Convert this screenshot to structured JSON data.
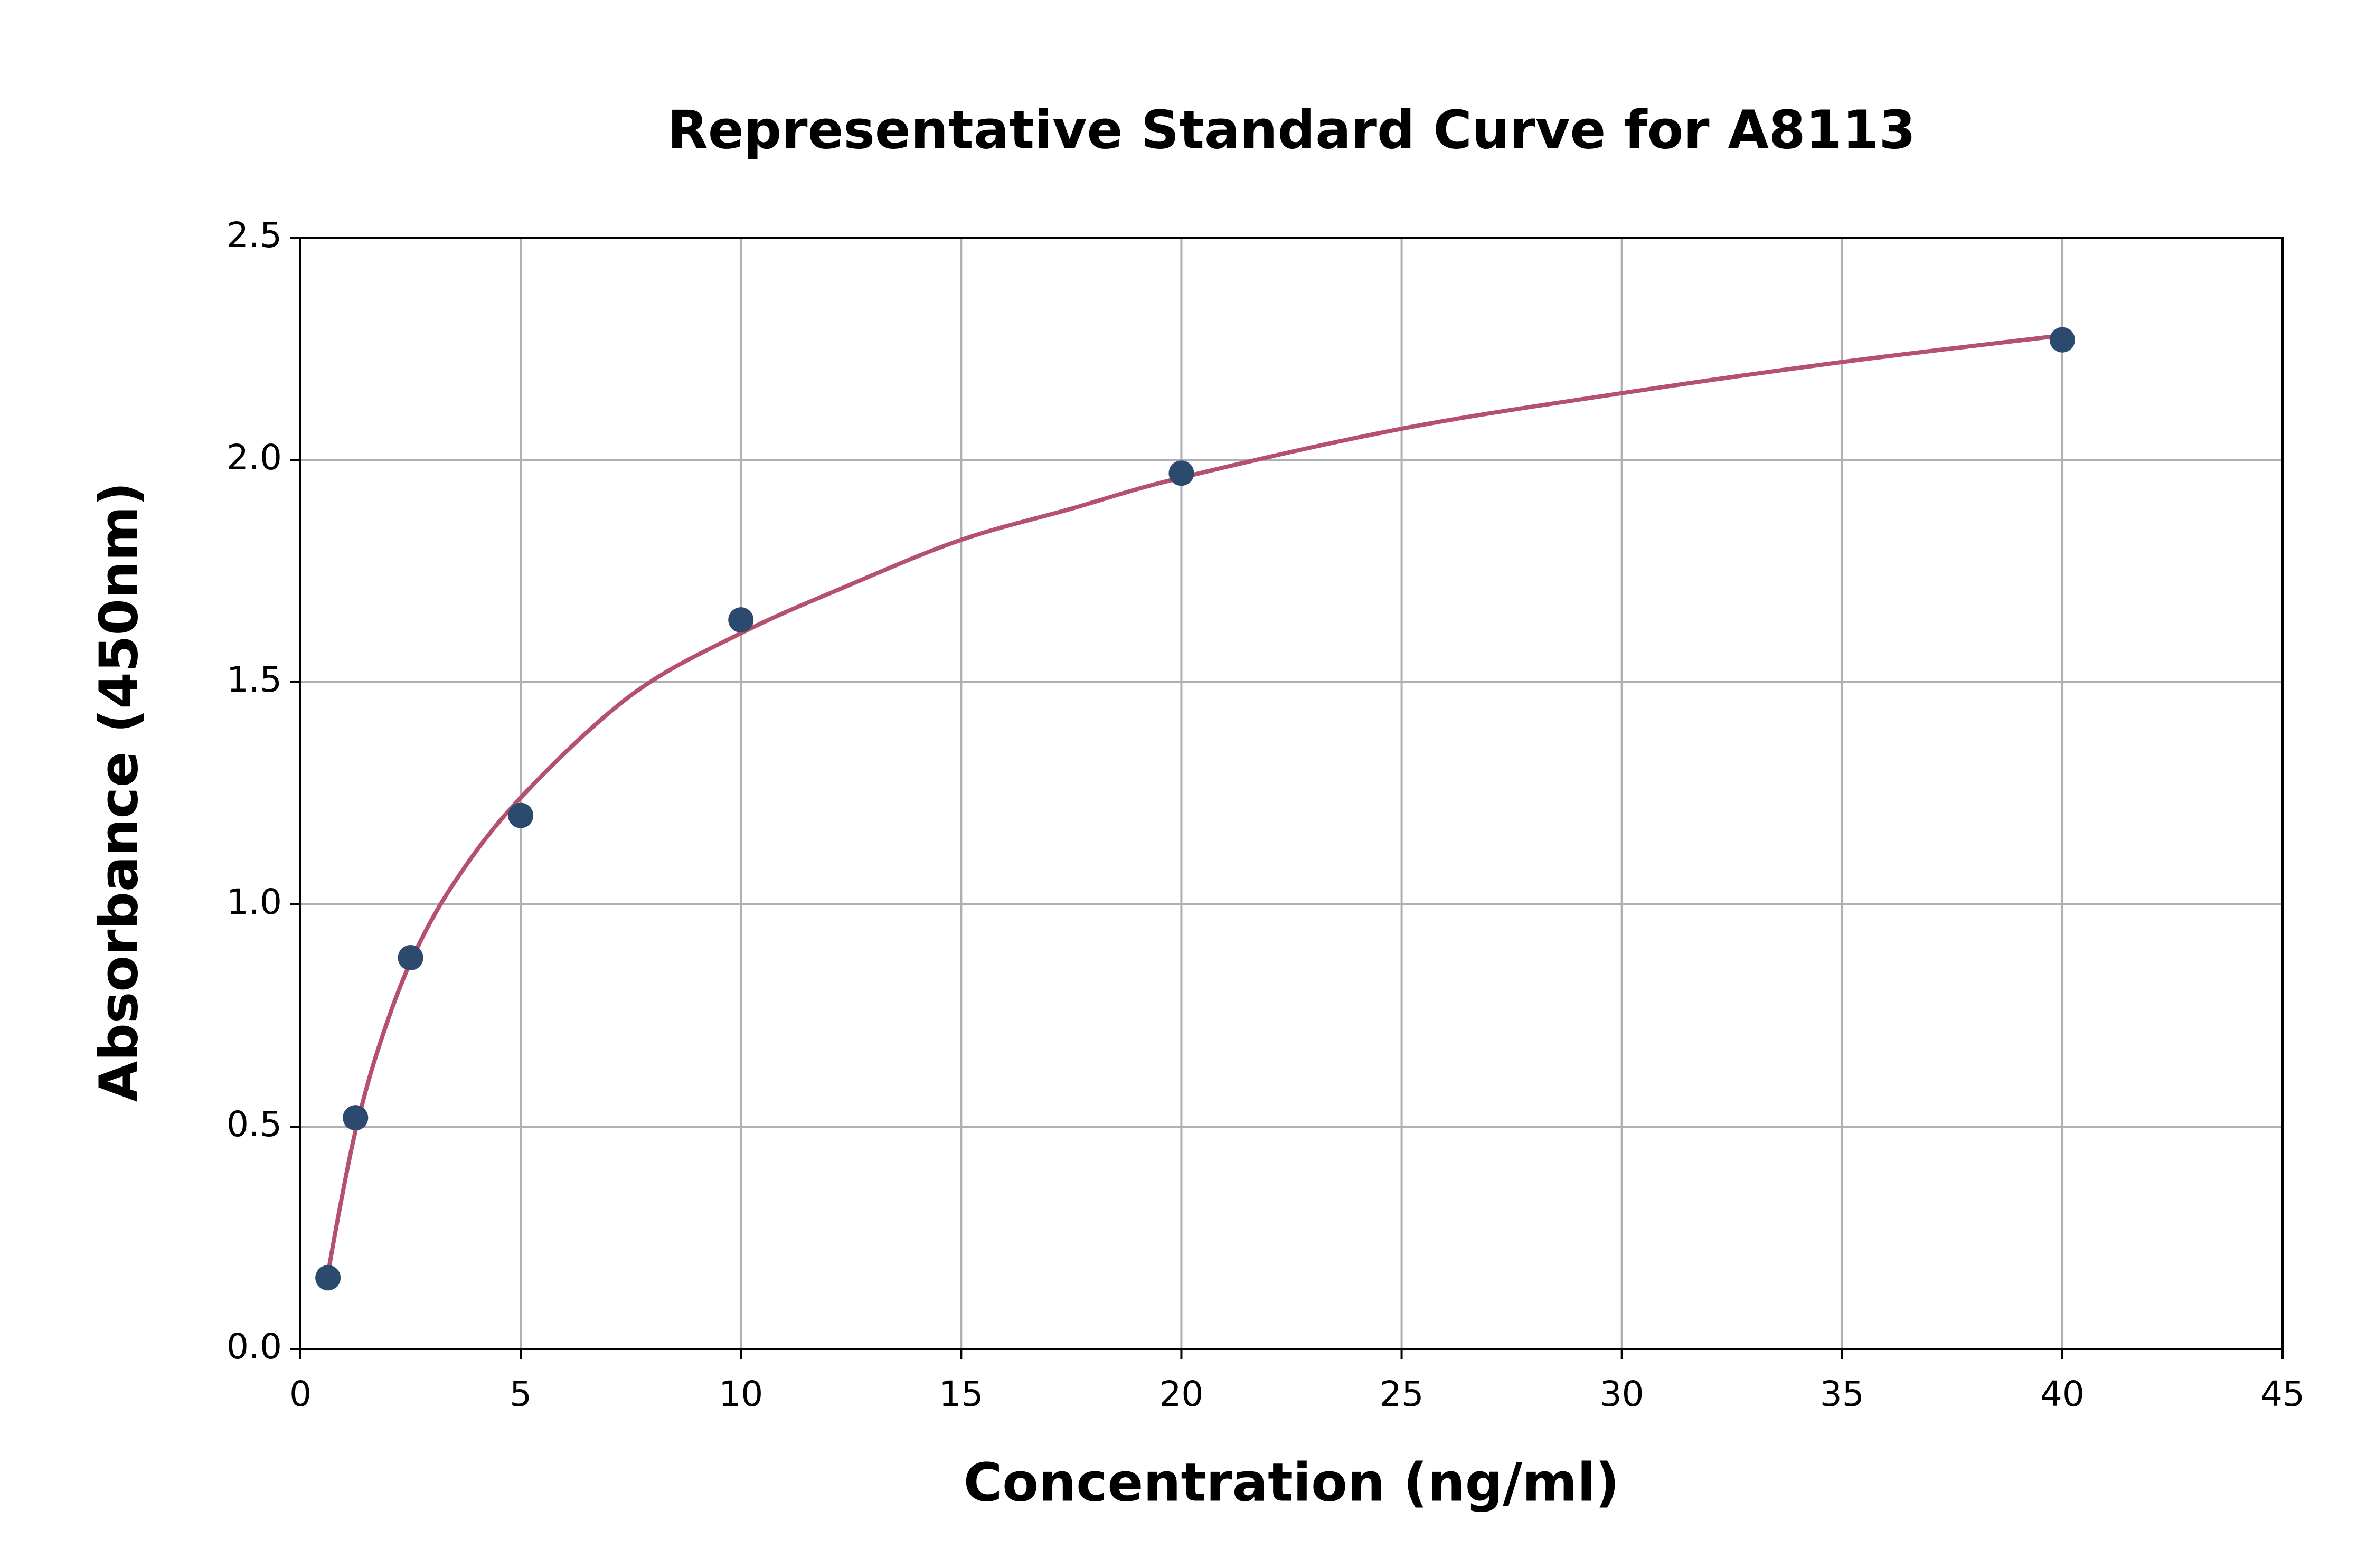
{
  "chart_data": {
    "type": "scatter",
    "title": "Representative Standard Curve for A8113",
    "x_label": "Concentration (ng/ml)",
    "y_label": "Absorbance (450nm)",
    "xlim": [
      0,
      45
    ],
    "ylim": [
      0,
      2.5
    ],
    "xticks": [
      0,
      5,
      10,
      15,
      20,
      25,
      30,
      35,
      40,
      45
    ],
    "yticks": [
      {
        "value": 0,
        "label": "0.0"
      },
      0.5,
      {
        "value": 1,
        "label": "1.0"
      },
      1.5,
      {
        "value": 2,
        "label": "2.0"
      },
      2.5
    ],
    "grid": true,
    "series": [
      {
        "type": "line",
        "color": "#b5506f",
        "x": [
          0.625,
          0.9,
          1.25,
          1.75,
          2.5,
          3.5,
          5,
          7.5,
          10,
          12.5,
          15,
          17.5,
          20,
          25,
          30,
          35,
          40
        ],
        "values": [
          0.17,
          0.32,
          0.49,
          0.67,
          0.87,
          1.05,
          1.24,
          1.47,
          1.61,
          1.72,
          1.82,
          1.89,
          1.96,
          2.07,
          2.15,
          2.22,
          2.28
        ]
      },
      {
        "type": "scatter",
        "color": "#2c4a6e",
        "x": [
          0.625,
          1.25,
          2.5,
          5,
          10,
          20,
          40
        ],
        "values": [
          0.16,
          0.52,
          0.88,
          1.2,
          1.64,
          1.97,
          2.27
        ]
      }
    ]
  }
}
